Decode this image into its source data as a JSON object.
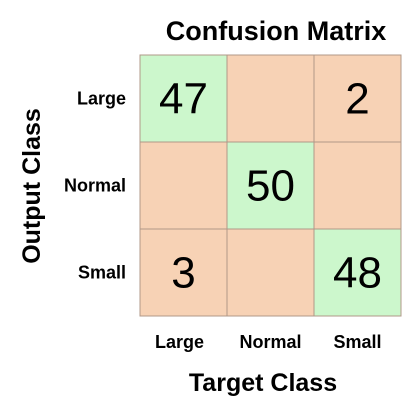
{
  "chart_data": {
    "type": "heatmap",
    "title": "Confusion Matrix",
    "xlabel": "Target Class",
    "ylabel": "Output Class",
    "x_categories": [
      "Large",
      "Normal",
      "Small"
    ],
    "y_categories": [
      "Large",
      "Normal",
      "Small"
    ],
    "values": [
      [
        47,
        null,
        2
      ],
      [
        null,
        50,
        null
      ],
      [
        3,
        null,
        48
      ]
    ],
    "colors": {
      "diagonal": "#ccf7cc",
      "off_diagonal": "#f7d2b5",
      "grid_line": "#b09888"
    }
  }
}
